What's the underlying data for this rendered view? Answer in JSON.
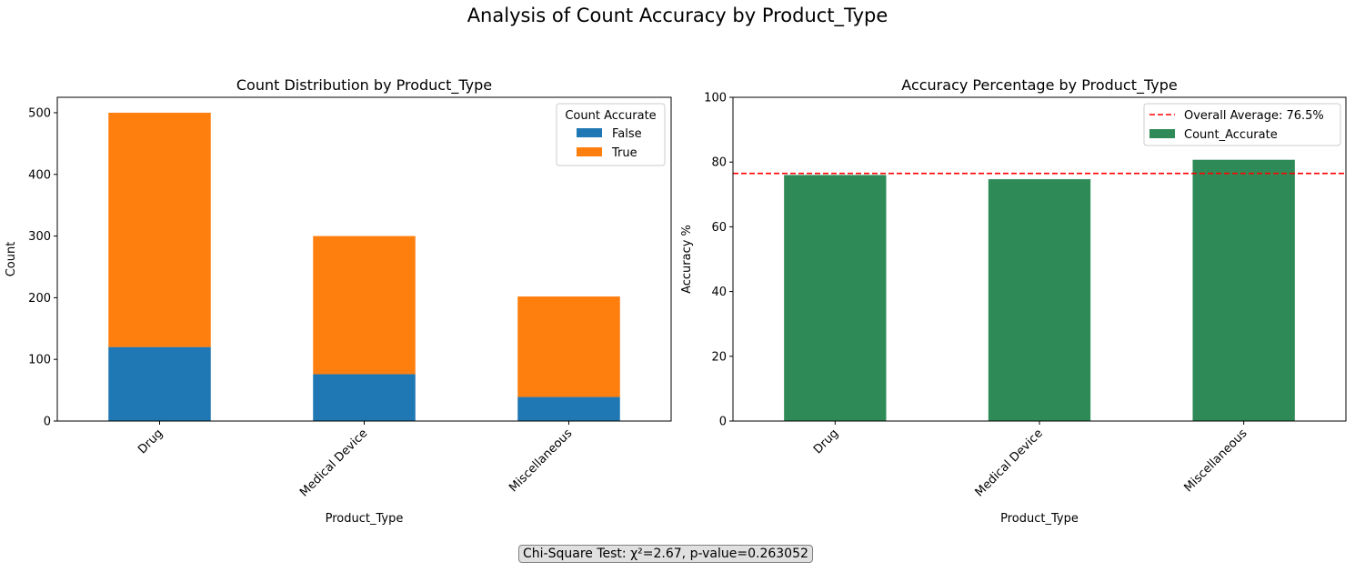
{
  "title": "Analysis of Count Accuracy by Product_Type",
  "annotation": "Chi-Square Test: χ²=2.67, p-value=0.263052",
  "chart_data": [
    {
      "type": "bar",
      "stacked": true,
      "title": "Count Distribution by Product_Type",
      "xlabel": "Product_Type",
      "ylabel": "Count",
      "categories": [
        "Drug",
        "Medical Device",
        "Miscellaneous"
      ],
      "series": [
        {
          "name": "False",
          "values": [
            120,
            76,
            39
          ],
          "color": "#1f77b4"
        },
        {
          "name": "True",
          "values": [
            380,
            224,
            163
          ],
          "color": "#ff7f0e"
        }
      ],
      "ylim": [
        0,
        525
      ],
      "yticks": [
        0,
        100,
        200,
        300,
        400,
        500
      ],
      "legend_title": "Count Accurate",
      "legend_loc": "upper right",
      "grid": false
    },
    {
      "type": "bar",
      "title": "Accuracy Percentage by Product_Type",
      "xlabel": "Product_Type",
      "ylabel": "Accuracy %",
      "categories": [
        "Drug",
        "Medical Device",
        "Miscellaneous"
      ],
      "series": [
        {
          "name": "Count_Accurate",
          "values": [
            76.0,
            74.7,
            80.7
          ],
          "color": "#2e8b57"
        }
      ],
      "reference_line": {
        "label": "Overall Average: 76.5%",
        "value": 76.5,
        "color": "#ff0000",
        "style": "dashed"
      },
      "ylim": [
        0,
        100
      ],
      "yticks": [
        0,
        20,
        40,
        60,
        80,
        100
      ],
      "legend_loc": "upper right",
      "grid": false
    }
  ]
}
